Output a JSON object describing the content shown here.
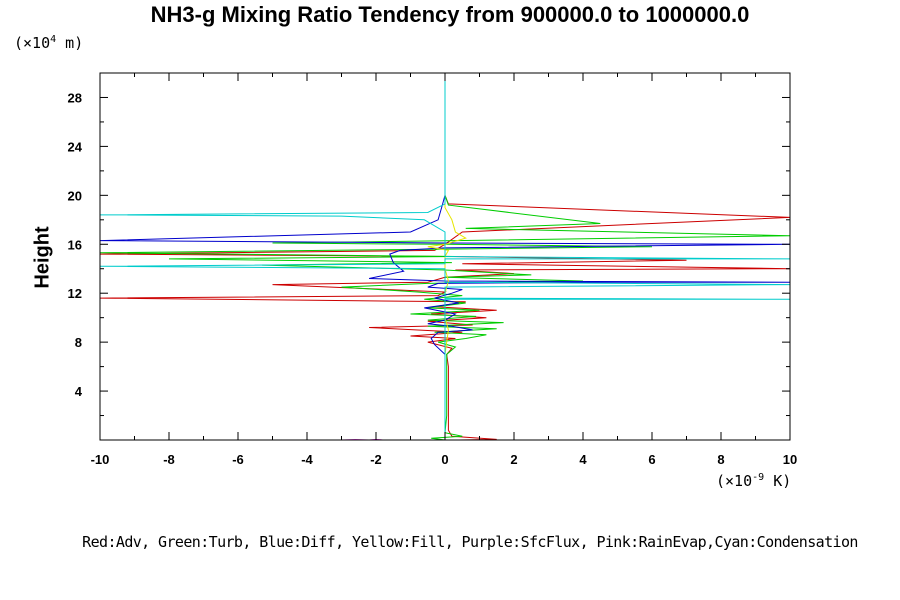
{
  "chart_data": {
    "type": "line",
    "title": "NH3-g Mixing Ratio Tendency from 900000.0 to 1000000.0",
    "ylabel": "Height",
    "y_unit_prefix": "(×10",
    "y_unit_exp": "4",
    "y_unit_suffix": " m)",
    "x_unit_prefix": "(×10",
    "x_unit_exp": "-9",
    "x_unit_suffix": " K)",
    "xlim": [
      -10,
      10
    ],
    "ylim": [
      0,
      30
    ],
    "xticks": [
      -10,
      -8,
      -6,
      -4,
      -2,
      0,
      2,
      4,
      6,
      8,
      10
    ],
    "xtick_labels": [
      "-10",
      "-8",
      "-6",
      "-4",
      "-2",
      "0",
      "2",
      "4",
      "6",
      "8",
      "10"
    ],
    "yticks": [
      4,
      8,
      12,
      16,
      20,
      24,
      28
    ],
    "ytick_labels": [
      "4",
      "8",
      "12",
      "16",
      "20",
      "24",
      "28"
    ],
    "legend_text": "Red:Adv, Green:Turb, Blue:Diff, Yellow:Fill, Purple:SfcFlux, Pink:RainEvap,Cyan:Condensation",
    "series": [
      {
        "name": "Adv",
        "color": "#cc0000",
        "points": [
          [
            0.4,
            0
          ],
          [
            1.5,
            0.05
          ],
          [
            0.2,
            0.3
          ],
          [
            0.1,
            0.8
          ],
          [
            0.1,
            2
          ],
          [
            0.1,
            4
          ],
          [
            0.1,
            6
          ],
          [
            0.05,
            7
          ],
          [
            0.2,
            7.5
          ],
          [
            -0.5,
            8
          ],
          [
            0.3,
            8.3
          ],
          [
            -1,
            8.5
          ],
          [
            0.5,
            8.8
          ],
          [
            -2.2,
            9.2
          ],
          [
            0.8,
            9.4
          ],
          [
            -0.5,
            9.7
          ],
          [
            1.2,
            10
          ],
          [
            -0.4,
            10.3
          ],
          [
            1.5,
            10.6
          ],
          [
            -0.3,
            10.9
          ],
          [
            0.6,
            11.3
          ],
          [
            -10,
            11.6
          ],
          [
            -0.2,
            11.8
          ],
          [
            0,
            12.1
          ],
          [
            -5,
            12.7
          ],
          [
            -0.5,
            12.9
          ],
          [
            0,
            13.3
          ],
          [
            2,
            13.6
          ],
          [
            0.3,
            13.9
          ],
          [
            10,
            14
          ],
          [
            0.5,
            14.4
          ],
          [
            7,
            14.7
          ],
          [
            0.2,
            15
          ],
          [
            -10,
            15.2
          ],
          [
            -0.3,
            15.5
          ],
          [
            0,
            16
          ],
          [
            0.5,
            17
          ],
          [
            10,
            18.2
          ],
          [
            0.1,
            19.3
          ],
          [
            0,
            20
          ],
          [
            0,
            29.8
          ]
        ]
      },
      {
        "name": "Turb",
        "color": "#00cc00",
        "points": [
          [
            0,
            0
          ],
          [
            -0.4,
            0.15
          ],
          [
            0.5,
            0.3
          ],
          [
            0,
            0.6
          ],
          [
            0.05,
            2
          ],
          [
            0.05,
            6
          ],
          [
            0.05,
            7
          ],
          [
            0.3,
            7.6
          ],
          [
            -0.2,
            8
          ],
          [
            0.6,
            8.3
          ],
          [
            1.2,
            8.6
          ],
          [
            -0.3,
            8.8
          ],
          [
            1.5,
            9.1
          ],
          [
            -0.5,
            9.3
          ],
          [
            1.7,
            9.6
          ],
          [
            -0.5,
            9.8
          ],
          [
            0.9,
            10.1
          ],
          [
            -1,
            10.3
          ],
          [
            1,
            10.6
          ],
          [
            -0.5,
            10.8
          ],
          [
            0.6,
            11.2
          ],
          [
            -0.6,
            11.5
          ],
          [
            0.5,
            11.8
          ],
          [
            -0.8,
            12.1
          ],
          [
            -3,
            12.5
          ],
          [
            -0.5,
            12.8
          ],
          [
            4,
            13
          ],
          [
            0,
            13.3
          ],
          [
            2.5,
            13.5
          ],
          [
            0,
            13.9
          ],
          [
            -5.3,
            14.3
          ],
          [
            0.2,
            14.5
          ],
          [
            -8,
            14.8
          ],
          [
            0.3,
            15
          ],
          [
            -10,
            15.3
          ],
          [
            -0.2,
            15.6
          ],
          [
            6,
            15.8
          ],
          [
            0,
            16
          ],
          [
            -5,
            16.1
          ],
          [
            0.3,
            16.3
          ],
          [
            10,
            16.7
          ],
          [
            0.6,
            17.3
          ],
          [
            4.5,
            17.7
          ],
          [
            0.1,
            19.2
          ],
          [
            0,
            20
          ],
          [
            0,
            29.8
          ]
        ]
      },
      {
        "name": "Diff",
        "color": "#0000cc",
        "points": [
          [
            0,
            0
          ],
          [
            0,
            2
          ],
          [
            0,
            6
          ],
          [
            0,
            7
          ],
          [
            -0.3,
            7.8
          ],
          [
            -0.4,
            8.3
          ],
          [
            -0.2,
            8.8
          ],
          [
            0.8,
            9
          ],
          [
            0.2,
            9.3
          ],
          [
            -0.5,
            9.5
          ],
          [
            0,
            9.8
          ],
          [
            0.3,
            10.3
          ],
          [
            -0.6,
            10.8
          ],
          [
            0.4,
            11.2
          ],
          [
            -0.3,
            11.6
          ],
          [
            0.2,
            12
          ],
          [
            0.5,
            12.3
          ],
          [
            -0.5,
            12.5
          ],
          [
            -0.2,
            12.8
          ],
          [
            5,
            12.9
          ],
          [
            10,
            12.9
          ],
          [
            0,
            13
          ],
          [
            -2.2,
            13.2
          ],
          [
            -1.2,
            13.8
          ],
          [
            -1.5,
            14.5
          ],
          [
            -1.6,
            15.2
          ],
          [
            -1.3,
            15.5
          ],
          [
            0,
            15.7
          ],
          [
            10,
            16
          ],
          [
            0,
            16.1
          ],
          [
            -10,
            16.3
          ],
          [
            -1,
            17
          ],
          [
            -0.2,
            18
          ],
          [
            -0.1,
            19
          ],
          [
            0,
            20
          ],
          [
            0,
            29.8
          ]
        ]
      },
      {
        "name": "Fill",
        "color": "#e6e600",
        "points": [
          [
            0,
            0
          ],
          [
            0,
            6
          ],
          [
            0,
            7
          ],
          [
            0.1,
            9
          ],
          [
            0,
            10
          ],
          [
            0,
            12
          ],
          [
            0.1,
            13
          ],
          [
            0,
            14
          ],
          [
            0,
            15
          ],
          [
            0.1,
            15.5
          ],
          [
            -0.5,
            15.8
          ],
          [
            0,
            16
          ],
          [
            0.6,
            16.5
          ],
          [
            0.3,
            17
          ],
          [
            0.2,
            18
          ],
          [
            0,
            19
          ],
          [
            0,
            20
          ],
          [
            0,
            29.8
          ]
        ]
      },
      {
        "name": "SfcFlux",
        "color": "#cc00cc",
        "points": [
          [
            -3,
            0
          ],
          [
            -2.6,
            0.03
          ],
          [
            -2.2,
            0
          ],
          [
            -2,
            0.04
          ],
          [
            -1.8,
            0
          ]
        ]
      },
      {
        "name": "Condensation",
        "color": "#00cccc",
        "points": [
          [
            0,
            0
          ],
          [
            0,
            2
          ],
          [
            0,
            8
          ],
          [
            0,
            10
          ],
          [
            0,
            11.5
          ],
          [
            10,
            11.5
          ],
          [
            0,
            11.6
          ],
          [
            0,
            12.5
          ],
          [
            10,
            12.7
          ],
          [
            0,
            12.9
          ],
          [
            0,
            14
          ],
          [
            -10,
            14.2
          ],
          [
            0,
            14.4
          ],
          [
            0,
            14.8
          ],
          [
            10,
            14.8
          ],
          [
            0,
            15
          ],
          [
            0,
            17
          ],
          [
            -0.6,
            18
          ],
          [
            -3,
            18.3
          ],
          [
            -10,
            18.4
          ],
          [
            -0.5,
            18.6
          ],
          [
            0,
            19.3
          ],
          [
            0,
            29.8
          ]
        ]
      }
    ]
  }
}
